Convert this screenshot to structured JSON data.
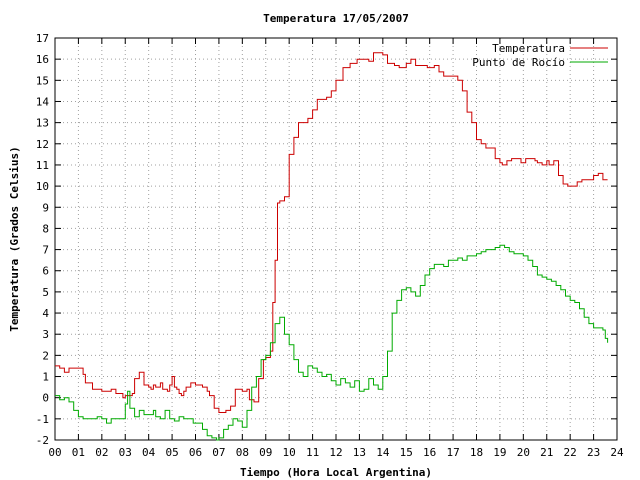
{
  "chart_data": {
    "type": "line",
    "title": "Temperatura 17/05/2007",
    "xlabel": "Tiempo (Hora Local Argentina)",
    "ylabel": "Temperatura (Grados Celsius)",
    "xlim": [
      0,
      24
    ],
    "ylim": [
      -2,
      17
    ],
    "x_ticks": [
      "00",
      "01",
      "02",
      "03",
      "04",
      "05",
      "06",
      "07",
      "08",
      "09",
      "10",
      "11",
      "12",
      "13",
      "14",
      "15",
      "16",
      "17",
      "18",
      "19",
      "20",
      "21",
      "22",
      "23",
      "24"
    ],
    "y_ticks": [
      "-2",
      "-1",
      "0",
      "1",
      "2",
      "3",
      "4",
      "5",
      "6",
      "7",
      "8",
      "9",
      "10",
      "11",
      "12",
      "13",
      "14",
      "15",
      "16",
      "17"
    ],
    "grid": true,
    "legend_position": "top-right",
    "series": [
      {
        "name": "Temperatura",
        "color": "#cc0000",
        "x": [
          0.0,
          0.2,
          0.4,
          0.6,
          1.0,
          1.2,
          1.3,
          1.6,
          2.0,
          2.2,
          2.4,
          2.6,
          2.9,
          3.0,
          3.1,
          3.3,
          3.4,
          3.6,
          3.8,
          4.0,
          4.1,
          4.2,
          4.3,
          4.5,
          4.6,
          4.8,
          4.9,
          5.0,
          5.1,
          5.2,
          5.3,
          5.4,
          5.5,
          5.6,
          5.8,
          6.0,
          6.2,
          6.3,
          6.5,
          6.6,
          6.8,
          7.0,
          7.2,
          7.3,
          7.5,
          7.7,
          7.8,
          8.0,
          8.1,
          8.2,
          8.3,
          8.5,
          8.7,
          8.9,
          9.0,
          9.1,
          9.2,
          9.3,
          9.4,
          9.5,
          9.6,
          9.8,
          10.0,
          10.2,
          10.4,
          10.6,
          10.8,
          11.0,
          11.2,
          11.4,
          11.6,
          11.8,
          12.0,
          12.3,
          12.6,
          12.9,
          13.2,
          13.4,
          13.6,
          13.8,
          14.0,
          14.2,
          14.5,
          14.7,
          14.9,
          15.0,
          15.2,
          15.4,
          15.7,
          15.9,
          16.0,
          16.2,
          16.4,
          16.6,
          16.8,
          17.0,
          17.2,
          17.4,
          17.6,
          17.8,
          18.0,
          18.2,
          18.4,
          18.6,
          18.8,
          19.0,
          19.1,
          19.3,
          19.5,
          19.7,
          19.9,
          20.1,
          20.3,
          20.5,
          20.6,
          20.8,
          21.0,
          21.1,
          21.3,
          21.5,
          21.7,
          21.9,
          22.1,
          22.3,
          22.5,
          22.7,
          23.0,
          23.2,
          23.4,
          23.6
        ],
        "y": [
          1.5,
          1.4,
          1.2,
          1.4,
          1.4,
          1.1,
          0.7,
          0.4,
          0.3,
          0.3,
          0.4,
          0.2,
          0.0,
          0.1,
          0.1,
          0.2,
          0.9,
          1.2,
          0.6,
          0.5,
          0.4,
          0.6,
          0.5,
          0.7,
          0.4,
          0.3,
          0.6,
          1.0,
          0.5,
          0.4,
          0.2,
          0.1,
          0.3,
          0.5,
          0.7,
          0.6,
          0.6,
          0.5,
          0.3,
          0.1,
          -0.5,
          -0.7,
          -0.7,
          -0.6,
          -0.4,
          0.4,
          0.4,
          0.3,
          0.3,
          0.4,
          -0.1,
          -0.2,
          0.9,
          1.8,
          1.9,
          1.9,
          2.2,
          4.5,
          6.5,
          9.2,
          9.3,
          9.5,
          11.5,
          12.3,
          13.0,
          13.0,
          13.2,
          13.6,
          14.1,
          14.1,
          14.2,
          14.5,
          15.0,
          15.6,
          15.8,
          16.0,
          16.0,
          15.9,
          16.3,
          16.3,
          16.2,
          15.8,
          15.7,
          15.6,
          15.6,
          15.8,
          16.0,
          15.7,
          15.7,
          15.6,
          15.6,
          15.7,
          15.4,
          15.2,
          15.2,
          15.2,
          15.0,
          14.5,
          13.5,
          13.0,
          12.2,
          12.0,
          11.8,
          11.8,
          11.3,
          11.1,
          11.0,
          11.2,
          11.3,
          11.3,
          11.1,
          11.3,
          11.3,
          11.2,
          11.1,
          11.0,
          11.2,
          11.0,
          11.2,
          10.5,
          10.1,
          10.0,
          10.0,
          10.2,
          10.3,
          10.3,
          10.5,
          10.6,
          10.3,
          10.3
        ],
        "markers": false
      },
      {
        "name": "Punto de Rocío",
        "color": "#00aa00",
        "x": [
          0.0,
          0.2,
          0.4,
          0.6,
          0.8,
          1.0,
          1.2,
          1.4,
          1.6,
          1.8,
          2.0,
          2.2,
          2.4,
          2.6,
          2.8,
          3.0,
          3.1,
          3.2,
          3.4,
          3.6,
          3.8,
          4.0,
          4.2,
          4.3,
          4.5,
          4.7,
          4.9,
          5.1,
          5.3,
          5.5,
          5.7,
          5.9,
          6.1,
          6.3,
          6.5,
          6.7,
          6.9,
          7.0,
          7.2,
          7.4,
          7.6,
          7.8,
          8.0,
          8.2,
          8.4,
          8.6,
          8.8,
          9.0,
          9.2,
          9.4,
          9.6,
          9.8,
          10.0,
          10.2,
          10.4,
          10.6,
          10.8,
          11.0,
          11.2,
          11.4,
          11.6,
          11.8,
          12.0,
          12.2,
          12.4,
          12.6,
          12.8,
          13.0,
          13.2,
          13.4,
          13.6,
          13.8,
          14.0,
          14.2,
          14.4,
          14.6,
          14.8,
          15.0,
          15.2,
          15.4,
          15.6,
          15.8,
          16.0,
          16.2,
          16.4,
          16.6,
          16.8,
          17.0,
          17.2,
          17.4,
          17.6,
          17.8,
          18.0,
          18.2,
          18.4,
          18.6,
          18.8,
          19.0,
          19.2,
          19.4,
          19.6,
          19.8,
          20.0,
          20.2,
          20.4,
          20.6,
          20.8,
          21.0,
          21.2,
          21.4,
          21.6,
          21.8,
          22.0,
          22.2,
          22.4,
          22.6,
          22.8,
          23.0,
          23.2,
          23.4,
          23.5,
          23.6
        ],
        "y": [
          0.1,
          -0.1,
          0.0,
          -0.2,
          -0.6,
          -0.9,
          -1.0,
          -1.0,
          -1.0,
          -0.9,
          -1.0,
          -1.2,
          -1.0,
          -1.0,
          -1.0,
          -0.3,
          0.3,
          -0.5,
          -0.9,
          -0.6,
          -0.8,
          -0.8,
          -0.6,
          -0.9,
          -1.0,
          -0.6,
          -1.0,
          -1.1,
          -0.9,
          -1.0,
          -1.0,
          -1.2,
          -1.2,
          -1.5,
          -1.8,
          -1.9,
          -2.0,
          -1.9,
          -1.5,
          -1.3,
          -1.0,
          -1.1,
          -1.4,
          -0.6,
          0.5,
          1.0,
          1.8,
          2.0,
          2.6,
          3.5,
          3.8,
          3.0,
          2.5,
          1.8,
          1.2,
          1.0,
          1.5,
          1.4,
          1.2,
          1.0,
          1.1,
          0.8,
          0.6,
          0.9,
          0.7,
          0.5,
          0.8,
          0.3,
          0.4,
          0.9,
          0.6,
          0.4,
          1.0,
          2.2,
          4.0,
          4.6,
          5.1,
          5.2,
          5.0,
          4.8,
          5.3,
          5.8,
          6.1,
          6.3,
          6.3,
          6.2,
          6.5,
          6.5,
          6.6,
          6.5,
          6.7,
          6.7,
          6.8,
          6.9,
          7.0,
          7.0,
          7.1,
          7.2,
          7.1,
          6.9,
          6.8,
          6.8,
          6.7,
          6.5,
          6.2,
          5.8,
          5.7,
          5.6,
          5.5,
          5.3,
          5.1,
          4.8,
          4.6,
          4.5,
          4.2,
          3.8,
          3.5,
          3.3,
          3.3,
          3.2,
          2.8,
          2.6
        ]
      }
    ]
  }
}
